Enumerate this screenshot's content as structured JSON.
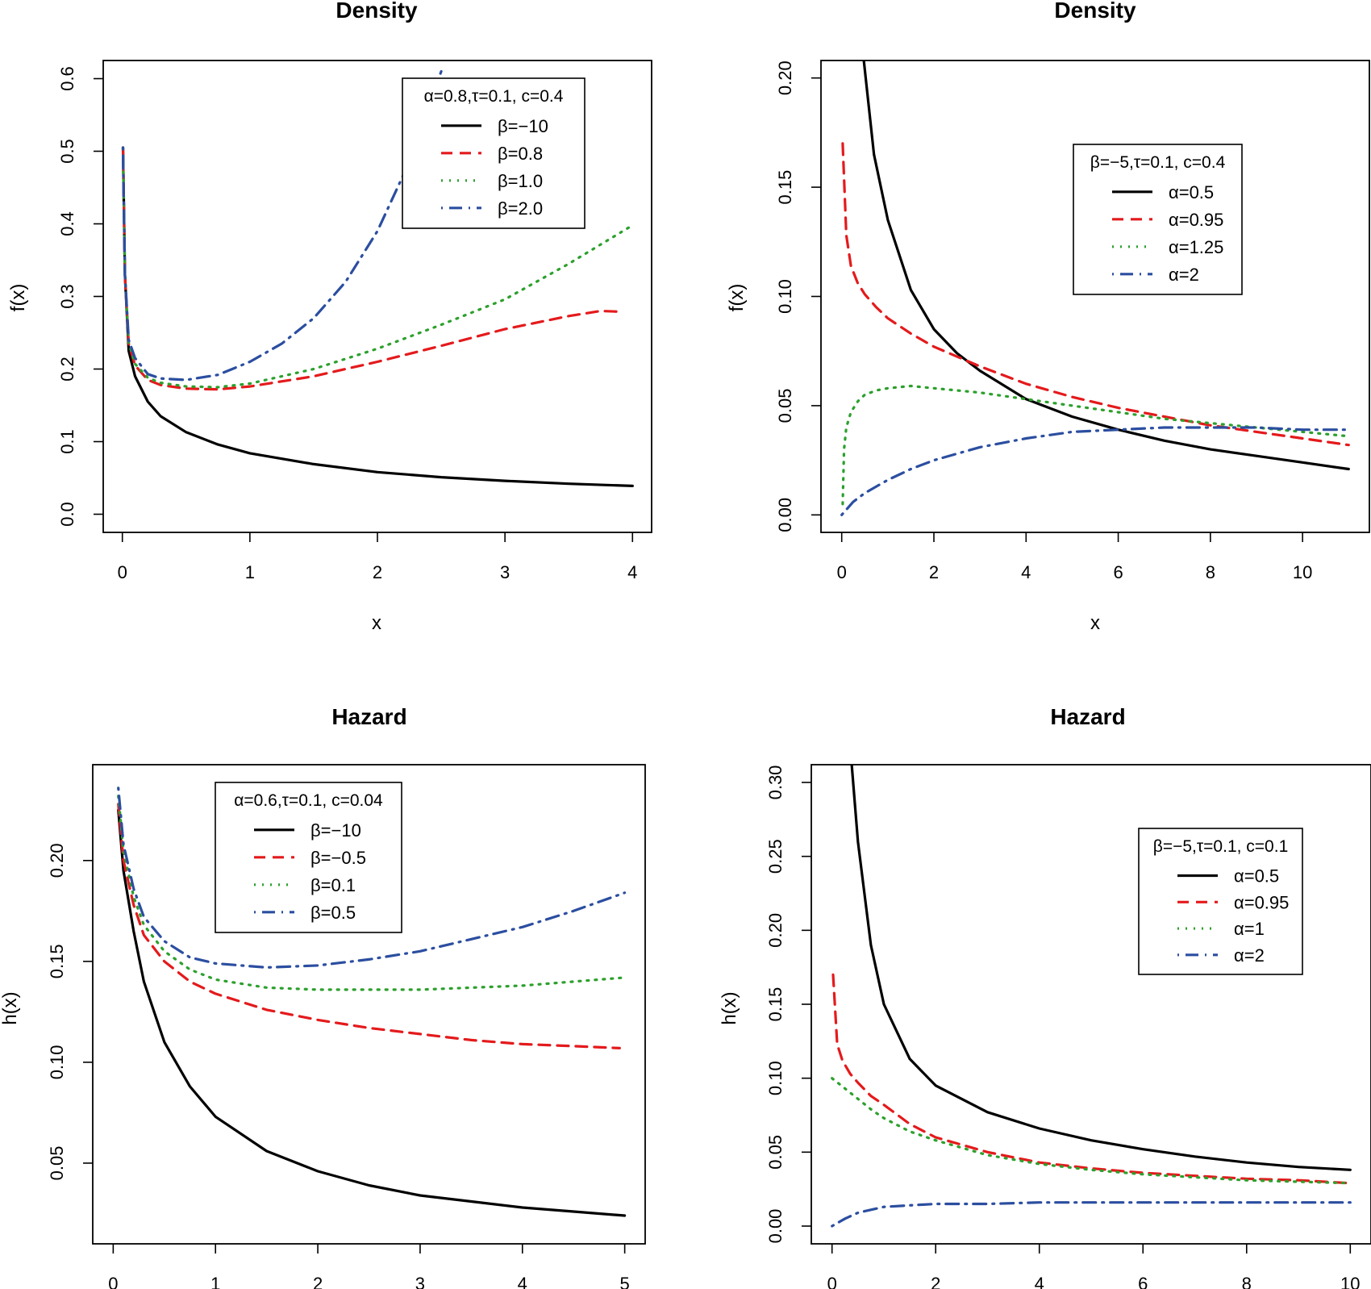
{
  "figure": {
    "background": "#ffffff"
  },
  "chart_data": [
    {
      "id": "p1",
      "type": "line",
      "title": "Density",
      "xlabel": "x",
      "ylabel": "f(x)",
      "xlim": [
        -0.15,
        4.15
      ],
      "ylim": [
        -0.025,
        0.625
      ],
      "xticks": [
        0,
        1,
        2,
        3,
        4
      ],
      "yticks": [
        0.0,
        0.1,
        0.2,
        0.3,
        0.4,
        0.5,
        0.6
      ],
      "ytick_labels": [
        "0.0",
        "0.1",
        "0.2",
        "0.3",
        "0.4",
        "0.5",
        "0.6"
      ],
      "grid": false,
      "legend": {
        "position": "top-right",
        "title": "α=0.8,τ=0.1, c=0.4"
      },
      "series": [
        {
          "name": "β=−10",
          "color": "#000000",
          "style": "solid",
          "x": [
            0.005,
            0.02,
            0.05,
            0.1,
            0.2,
            0.3,
            0.5,
            0.75,
            1.0,
            1.5,
            2.0,
            2.5,
            3.0,
            3.5,
            4.0
          ],
          "y": [
            0.505,
            0.33,
            0.225,
            0.19,
            0.155,
            0.135,
            0.113,
            0.096,
            0.084,
            0.069,
            0.058,
            0.051,
            0.046,
            0.042,
            0.039
          ]
        },
        {
          "name": "β=0.8",
          "color": "#e41a1c",
          "style": "dashed",
          "x": [
            0.005,
            0.02,
            0.05,
            0.1,
            0.2,
            0.3,
            0.5,
            0.75,
            1.0,
            1.5,
            2.0,
            2.5,
            3.0,
            3.5,
            3.75,
            3.9
          ],
          "y": [
            0.505,
            0.33,
            0.235,
            0.205,
            0.185,
            0.178,
            0.173,
            0.172,
            0.176,
            0.19,
            0.21,
            0.232,
            0.255,
            0.273,
            0.28,
            0.279
          ]
        },
        {
          "name": "β=1.0",
          "color": "#2ca02c",
          "style": "dotted",
          "x": [
            0.005,
            0.02,
            0.05,
            0.1,
            0.2,
            0.3,
            0.5,
            0.75,
            1.0,
            1.5,
            2.0,
            2.5,
            3.0,
            3.5,
            4.0
          ],
          "y": [
            0.505,
            0.33,
            0.236,
            0.207,
            0.188,
            0.181,
            0.176,
            0.175,
            0.18,
            0.2,
            0.228,
            0.261,
            0.296,
            0.345,
            0.398
          ]
        },
        {
          "name": "β=2.0",
          "color": "#2b4ea0",
          "style": "dotdash",
          "x": [
            0.005,
            0.02,
            0.05,
            0.1,
            0.2,
            0.3,
            0.5,
            0.75,
            1.0,
            1.25,
            1.5,
            1.75,
            2.0,
            2.25,
            2.5
          ],
          "y": [
            0.505,
            0.33,
            0.24,
            0.215,
            0.193,
            0.187,
            0.185,
            0.192,
            0.21,
            0.235,
            0.27,
            0.32,
            0.39,
            0.485,
            0.61
          ]
        }
      ]
    },
    {
      "id": "p2",
      "type": "line",
      "title": "Density",
      "xlabel": "x",
      "ylabel": "f(x)",
      "xlim": [
        -0.45,
        11.45
      ],
      "ylim": [
        -0.008,
        0.208
      ],
      "xticks": [
        0,
        2,
        4,
        6,
        8,
        10
      ],
      "yticks": [
        0.0,
        0.05,
        0.1,
        0.15,
        0.2
      ],
      "ytick_labels": [
        "0.00",
        "0.05",
        "0.10",
        "0.15",
        "0.20"
      ],
      "grid": false,
      "legend": {
        "position": "top-right",
        "title": "β=−5,τ=0.1, c=0.4"
      },
      "series": [
        {
          "name": "α=0.5",
          "color": "#000000",
          "style": "solid",
          "x": [
            0.48,
            0.7,
            1.0,
            1.5,
            2.0,
            2.5,
            3.0,
            4.0,
            5.0,
            6.0,
            7.0,
            8.0,
            9.0,
            10.0,
            11.0
          ],
          "y": [
            0.208,
            0.165,
            0.135,
            0.103,
            0.085,
            0.074,
            0.066,
            0.053,
            0.045,
            0.039,
            0.034,
            0.03,
            0.027,
            0.024,
            0.021
          ]
        },
        {
          "name": "α=0.95",
          "color": "#e41a1c",
          "style": "dashed",
          "x": [
            0.02,
            0.1,
            0.2,
            0.35,
            0.5,
            0.75,
            1.0,
            1.5,
            2.0,
            3.0,
            4.0,
            5.0,
            6.0,
            7.0,
            8.0,
            9.0,
            10.0,
            11.0
          ],
          "y": [
            0.17,
            0.128,
            0.114,
            0.106,
            0.101,
            0.095,
            0.09,
            0.083,
            0.077,
            0.068,
            0.06,
            0.054,
            0.049,
            0.045,
            0.041,
            0.038,
            0.035,
            0.032
          ]
        },
        {
          "name": "α=1.25",
          "color": "#2ca02c",
          "style": "dotted",
          "x": [
            0.02,
            0.05,
            0.1,
            0.2,
            0.35,
            0.5,
            0.75,
            1.0,
            1.5,
            2.0,
            3.0,
            4.0,
            5.0,
            6.0,
            7.0,
            8.0,
            9.0,
            10.0,
            11.0
          ],
          "y": [
            0.005,
            0.03,
            0.04,
            0.047,
            0.052,
            0.055,
            0.057,
            0.058,
            0.059,
            0.058,
            0.056,
            0.053,
            0.05,
            0.047,
            0.044,
            0.042,
            0.04,
            0.038,
            0.036
          ]
        },
        {
          "name": "α=2",
          "color": "#2b4ea0",
          "style": "dotdash",
          "x": [
            0.0,
            0.25,
            0.5,
            1.0,
            1.5,
            2.0,
            3.0,
            4.0,
            5.0,
            6.0,
            7.0,
            8.0,
            9.0,
            10.0,
            11.0
          ],
          "y": [
            0.0,
            0.006,
            0.01,
            0.016,
            0.021,
            0.025,
            0.031,
            0.035,
            0.038,
            0.039,
            0.04,
            0.04,
            0.04,
            0.039,
            0.039
          ]
        }
      ]
    },
    {
      "id": "p3",
      "type": "line",
      "title": "Hazard",
      "xlabel": "",
      "ylabel": "h(x)",
      "xlim": [
        -0.2,
        5.2
      ],
      "ylim": [
        0.01,
        0.2475
      ],
      "xticks": [
        0,
        1,
        2,
        3,
        4,
        5
      ],
      "yticks": [
        0.05,
        0.1,
        0.15,
        0.2
      ],
      "ytick_labels": [
        "0.05",
        "0.10",
        "0.15",
        "0.20"
      ],
      "grid": false,
      "legend": {
        "position": "top-left",
        "title": "α=0.6,τ=0.1, c=0.04"
      },
      "series": [
        {
          "name": "β=−10",
          "color": "#000000",
          "style": "solid",
          "x": [
            0.05,
            0.1,
            0.2,
            0.3,
            0.5,
            0.75,
            1.0,
            1.5,
            2.0,
            2.5,
            3.0,
            3.5,
            4.0,
            4.5,
            5.0
          ],
          "y": [
            0.225,
            0.195,
            0.165,
            0.14,
            0.11,
            0.088,
            0.073,
            0.056,
            0.046,
            0.039,
            0.034,
            0.031,
            0.028,
            0.026,
            0.024
          ]
        },
        {
          "name": "β=−0.5",
          "color": "#e41a1c",
          "style": "dashed",
          "x": [
            0.05,
            0.1,
            0.2,
            0.3,
            0.5,
            0.75,
            1.0,
            1.5,
            2.0,
            2.5,
            3.0,
            3.5,
            4.0,
            4.5,
            4.95
          ],
          "y": [
            0.228,
            0.2,
            0.178,
            0.163,
            0.15,
            0.14,
            0.134,
            0.126,
            0.121,
            0.117,
            0.114,
            0.111,
            0.109,
            0.108,
            0.107
          ]
        },
        {
          "name": "β=0.1",
          "color": "#2ca02c",
          "style": "dotted",
          "x": [
            0.05,
            0.1,
            0.2,
            0.3,
            0.5,
            0.75,
            1.0,
            1.5,
            2.0,
            2.5,
            3.0,
            3.5,
            4.0,
            4.5,
            5.0
          ],
          "y": [
            0.232,
            0.205,
            0.182,
            0.168,
            0.155,
            0.146,
            0.141,
            0.137,
            0.136,
            0.136,
            0.136,
            0.137,
            0.138,
            0.14,
            0.142
          ]
        },
        {
          "name": "β=0.5",
          "color": "#2b4ea0",
          "style": "dotdash",
          "x": [
            0.05,
            0.1,
            0.2,
            0.3,
            0.5,
            0.75,
            1.0,
            1.5,
            2.0,
            2.5,
            3.0,
            3.5,
            4.0,
            4.5,
            5.0
          ],
          "y": [
            0.236,
            0.208,
            0.186,
            0.172,
            0.16,
            0.152,
            0.149,
            0.147,
            0.148,
            0.151,
            0.155,
            0.161,
            0.167,
            0.175,
            0.184
          ]
        }
      ]
    },
    {
      "id": "p4",
      "type": "line",
      "title": "Hazard",
      "xlabel": "",
      "ylabel": "h(x)",
      "xlim": [
        -0.4,
        10.4
      ],
      "ylim": [
        -0.012,
        0.312
      ],
      "xticks": [
        0,
        2,
        4,
        6,
        8,
        10
      ],
      "yticks": [
        0.0,
        0.05,
        0.1,
        0.15,
        0.2,
        0.25,
        0.3
      ],
      "ytick_labels": [
        "0.00",
        "0.05",
        "0.10",
        "0.15",
        "0.20",
        "0.25",
        "0.30"
      ],
      "grid": false,
      "legend": {
        "position": "top-right",
        "title": "β=−5,τ=0.1, c=0.1"
      },
      "series": [
        {
          "name": "α=0.5",
          "color": "#000000",
          "style": "solid",
          "x": [
            0.38,
            0.5,
            0.75,
            1.0,
            1.5,
            2.0,
            3.0,
            4.0,
            5.0,
            6.0,
            7.0,
            8.0,
            9.0,
            10.0
          ],
          "y": [
            0.312,
            0.26,
            0.19,
            0.15,
            0.113,
            0.095,
            0.077,
            0.066,
            0.058,
            0.052,
            0.047,
            0.043,
            0.04,
            0.038
          ]
        },
        {
          "name": "α=0.95",
          "color": "#e41a1c",
          "style": "dashed",
          "x": [
            0.02,
            0.1,
            0.2,
            0.35,
            0.5,
            0.75,
            1.0,
            1.5,
            2.0,
            3.0,
            4.0,
            5.0,
            6.0,
            7.0,
            8.0,
            9.0,
            10.0
          ],
          "y": [
            0.17,
            0.123,
            0.112,
            0.103,
            0.097,
            0.088,
            0.082,
            0.069,
            0.06,
            0.05,
            0.043,
            0.039,
            0.036,
            0.034,
            0.032,
            0.031,
            0.029
          ]
        },
        {
          "name": "α=1",
          "color": "#2ca02c",
          "style": "dotted",
          "x": [
            0.0,
            0.25,
            0.5,
            0.75,
            1.0,
            1.5,
            2.0,
            3.0,
            4.0,
            5.0,
            6.0,
            7.0,
            8.0,
            9.0,
            10.0
          ],
          "y": [
            0.1,
            0.093,
            0.086,
            0.079,
            0.073,
            0.064,
            0.058,
            0.048,
            0.042,
            0.038,
            0.035,
            0.033,
            0.031,
            0.03,
            0.029
          ]
        },
        {
          "name": "α=2",
          "color": "#2b4ea0",
          "style": "dotdash",
          "x": [
            0.0,
            0.25,
            0.5,
            0.75,
            1.0,
            1.5,
            2.0,
            3.0,
            4.0,
            5.0,
            6.0,
            7.0,
            8.0,
            9.0,
            10.0
          ],
          "y": [
            0.0,
            0.005,
            0.009,
            0.011,
            0.013,
            0.014,
            0.015,
            0.015,
            0.016,
            0.016,
            0.016,
            0.016,
            0.016,
            0.016,
            0.016
          ]
        }
      ]
    }
  ]
}
